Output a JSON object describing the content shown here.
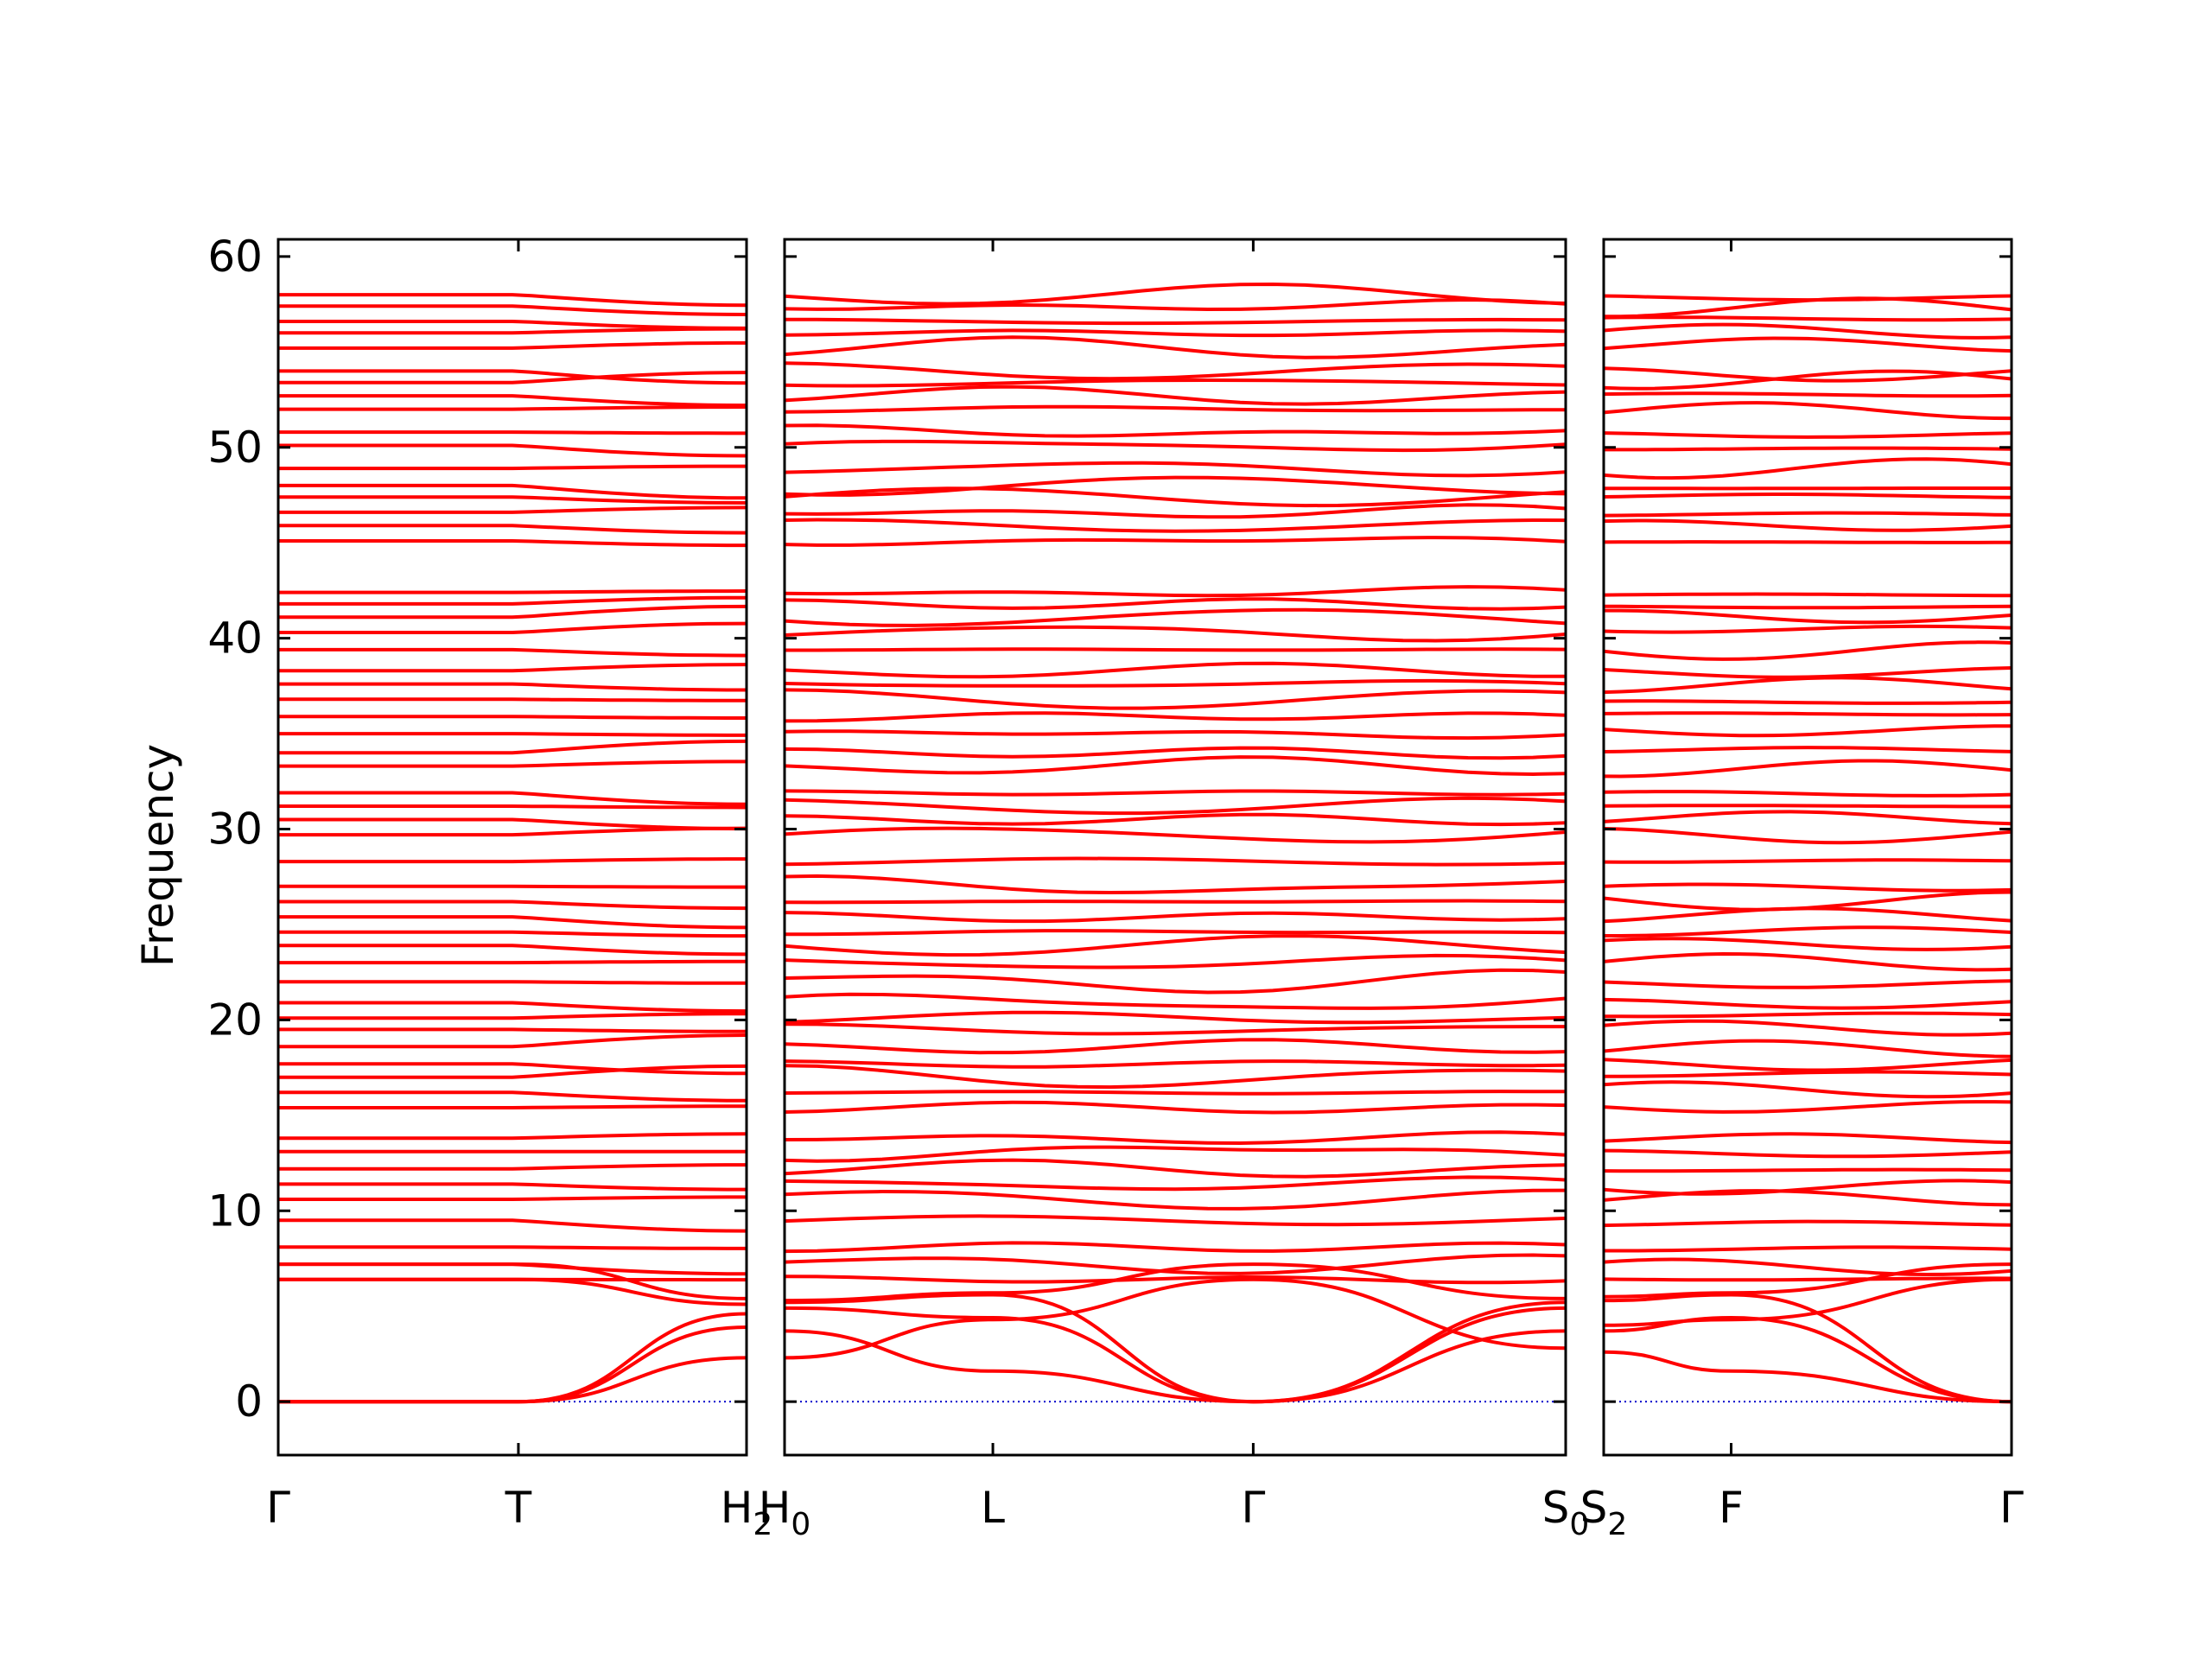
{
  "chart_data": {
    "type": "line",
    "ylabel": "Frequency",
    "ylim": [
      -2.8,
      60.9
    ],
    "yticks": [
      "0",
      "10",
      "20",
      "30",
      "40",
      "50",
      "60"
    ],
    "colors": {
      "bands": "#ff0000",
      "zero_line": "#0000cc",
      "frame": "#000000"
    },
    "zero_line_style": "dotted",
    "panels": [
      {
        "x_labels": [
          {
            "x": 0.0,
            "text": "Γ",
            "sub": ""
          },
          {
            "x": 1.0,
            "text": "T",
            "sub": ""
          },
          {
            "x": 1.95,
            "text": "H",
            "sub": "2"
          }
        ]
      },
      {
        "x_labels": [
          {
            "x": 0.0,
            "text": "H",
            "sub": "0"
          },
          {
            "x": 0.8,
            "text": "L",
            "sub": ""
          },
          {
            "x": 1.8,
            "text": "Γ",
            "sub": ""
          },
          {
            "x": 3.0,
            "text": "S",
            "sub": "0"
          }
        ]
      },
      {
        "x_labels": [
          {
            "x": 0.0,
            "text": "S",
            "sub": "2"
          },
          {
            "x": 0.5,
            "text": "F",
            "sub": ""
          },
          {
            "x": 1.6,
            "text": "Γ",
            "sub": ""
          }
        ]
      }
    ],
    "flat_band_levels": [
      6.4,
      7.2,
      8.1,
      9.5,
      10.6,
      11.4,
      12.2,
      13.1,
      13.8,
      15.4,
      16.2,
      17.0,
      17.7,
      18.6,
      19.5,
      20.1,
      20.9,
      22.0,
      23.0,
      23.9,
      24.6,
      25.4,
      26.2,
      27.0,
      28.3,
      29.7,
      30.5,
      31.2,
      31.9,
      33.3,
      34.0,
      35.0,
      35.9,
      36.8,
      37.6,
      38.3,
      39.4,
      40.3,
      41.1,
      41.8,
      42.4,
      45.1,
      45.9,
      46.6,
      47.4,
      48.0,
      48.9,
      50.1,
      50.8,
      52.0,
      52.7,
      53.4,
      54.0,
      55.2,
      56.0,
      56.6,
      57.4,
      58.0
    ],
    "acoustic_branches": [
      {
        "name": "",
        "points": [
          [
            0.0,
            0.0
          ],
          [
            1.0,
            0.0
          ],
          [
            1.95,
            2.3
          ],
          [
            2.15,
            3.7
          ],
          [
            2.95,
            1.6
          ],
          [
            3.95,
            0.0
          ],
          [
            5.15,
            3.7
          ],
          [
            5.35,
            2.6
          ],
          [
            5.85,
            1.6
          ],
          [
            6.95,
            0.0
          ]
        ]
      },
      {
        "name": "",
        "points": [
          [
            0.0,
            0.0
          ],
          [
            1.0,
            0.0
          ],
          [
            1.95,
            3.9
          ],
          [
            2.15,
            4.9
          ],
          [
            2.95,
            4.4
          ],
          [
            3.95,
            0.0
          ],
          [
            5.15,
            4.9
          ],
          [
            5.35,
            3.7
          ],
          [
            5.85,
            4.4
          ],
          [
            6.95,
            0.0
          ]
        ]
      },
      {
        "name": "",
        "points": [
          [
            0.0,
            0.0
          ],
          [
            1.0,
            0.0
          ],
          [
            1.95,
            4.6
          ],
          [
            2.15,
            5.2
          ],
          [
            2.95,
            5.6
          ],
          [
            3.95,
            0.0
          ],
          [
            5.15,
            5.2
          ],
          [
            5.35,
            5.3
          ],
          [
            5.85,
            5.6
          ],
          [
            6.95,
            0.0
          ]
        ]
      },
      {
        "name": "",
        "points": [
          [
            0.0,
            6.4
          ],
          [
            1.0,
            6.4
          ],
          [
            1.95,
            5.1
          ],
          [
            2.15,
            2.3
          ],
          [
            2.95,
            4.3
          ],
          [
            3.95,
            6.4
          ],
          [
            5.15,
            2.8
          ],
          [
            5.35,
            4.0
          ],
          [
            5.85,
            4.3
          ],
          [
            6.95,
            6.4
          ]
        ]
      },
      {
        "name": "",
        "points": [
          [
            0.0,
            7.2
          ],
          [
            1.0,
            7.2
          ],
          [
            1.95,
            5.4
          ],
          [
            2.15,
            5.3
          ],
          [
            2.95,
            5.7
          ],
          [
            3.95,
            7.2
          ],
          [
            5.15,
            5.4
          ],
          [
            5.35,
            5.5
          ],
          [
            5.85,
            5.7
          ],
          [
            6.95,
            7.2
          ]
        ]
      }
    ]
  }
}
